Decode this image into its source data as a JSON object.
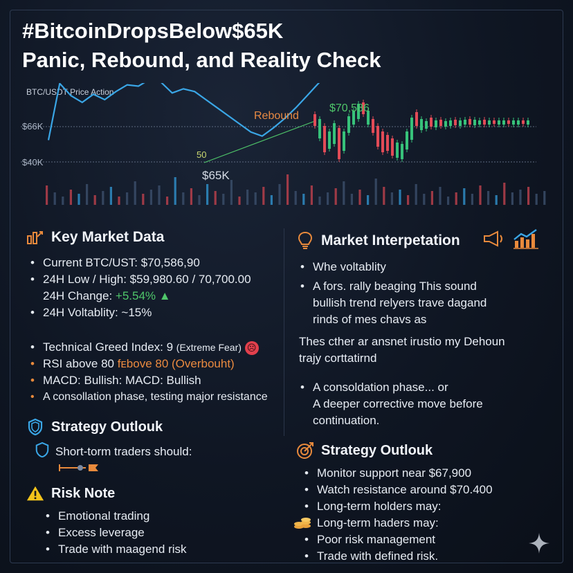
{
  "title": {
    "line1": "#BitcoinDropsBelow$65K",
    "line2": "Panic, Rebound, and Reality Check"
  },
  "chart": {
    "label": "BTC/USDT Price Action",
    "y_labels": [
      "$66K",
      "$40K"
    ],
    "annotations": {
      "rebound": "Rebound",
      "peak": "$70,586",
      "low": "$65K",
      "ma": "50"
    },
    "colors": {
      "price_line": "#3aa6e6",
      "trend_green": "#4fc66a",
      "up": "#37c27a",
      "down": "#e24b57"
    }
  },
  "chart_data": {
    "type": "line",
    "title": "BTC/USDT Price Action",
    "ylabel": "",
    "y_ticks": [
      "$66K",
      "$40K"
    ],
    "annotations": [
      "Rebound",
      "$70,586",
      "$65K",
      "50"
    ],
    "series": [
      {
        "values": [
          65.0,
          69.2,
          68.3,
          67.8,
          68.4,
          68.0,
          68.6,
          69.1,
          69.0,
          69.5,
          69.3,
          68.5,
          68.8,
          68.6,
          68.0,
          67.4,
          66.8,
          66.2,
          65.6,
          65.3,
          65.9,
          66.6,
          67.4,
          68.3,
          69.2,
          70.0,
          70.6,
          70.4,
          70.2
        ]
      }
    ]
  },
  "left": {
    "key_market": {
      "heading": "Key Market Data",
      "icon": "bitcoin-chart-icon",
      "items": [
        "Current BTC/UST: $70,586,90",
        "24H Low / High: $59,980.60 / 70,700.00"
      ],
      "change_label": "24H Change:",
      "change_value": "+5.54%",
      "volatility": "24H Voltablity: ~15%"
    },
    "indicators": {
      "greed": "Technical Greed Index: 9",
      "greed_note": "(Extreme Fear)",
      "rsi_a": "RSI above 80",
      "rsi_b": "fᴇbove 80 (Overbouht)",
      "macd": "MACD: Bullish: MACD: Bullish",
      "consol": "A consollation phase, testing major resistance"
    },
    "strategy": {
      "heading": "Strategy Outlouk",
      "sub": "Short-torm traders should:"
    },
    "risk": {
      "heading": "Risk Note",
      "items": [
        "Emotional trading",
        "Excess leverage",
        "Trade with maagend risk"
      ]
    }
  },
  "right": {
    "interp": {
      "heading": "Market Interpetation",
      "items": [
        "Whe voltablity",
        "A  fors. rally beaging This sound"
      ],
      "cont": [
        "bullish trend relyers trave dagand",
        "rinds of mes chavs as"
      ],
      "para": [
        "Thes cther ar ansnet irustio my Dehoun",
        "trajy corttatirnd"
      ],
      "item3": "A consoldation  phase... or",
      "item3_cont": [
        "A deeper corrective move before",
        "continuation."
      ]
    },
    "strategy": {
      "heading": "Strategy Outlouk",
      "items": [
        "Monitor support near $67,900",
        "Watch resistance around $70.400",
        "Long-term holders may:",
        "Long-term haders may:",
        "Poor risk management",
        "Trade with defined risk."
      ]
    }
  }
}
